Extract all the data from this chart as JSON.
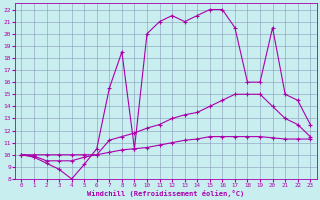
{
  "xlabel": "Windchill (Refroidissement éolien,°C)",
  "bg_color": "#c8eef0",
  "grid_color": "#8899bb",
  "line_color": "#aa00aa",
  "xlim": [
    -0.5,
    23.5
  ],
  "ylim": [
    8,
    22.5
  ],
  "xticks": [
    0,
    1,
    2,
    3,
    4,
    5,
    6,
    7,
    8,
    9,
    10,
    11,
    12,
    13,
    14,
    15,
    16,
    17,
    18,
    19,
    20,
    21,
    22,
    23
  ],
  "yticks": [
    8,
    9,
    10,
    11,
    12,
    13,
    14,
    15,
    16,
    17,
    18,
    19,
    20,
    21,
    22
  ],
  "line1_x": [
    0,
    1,
    2,
    3,
    4,
    5,
    6,
    7,
    8,
    9,
    10,
    11,
    12,
    13,
    14,
    15,
    16,
    17,
    18,
    19,
    20,
    21,
    22,
    23
  ],
  "line1_y": [
    10,
    10,
    10,
    10,
    10,
    10,
    10,
    10.2,
    10.4,
    10.5,
    10.6,
    10.8,
    11.0,
    11.2,
    11.3,
    11.5,
    11.5,
    11.5,
    11.5,
    11.5,
    11.4,
    11.3,
    11.3,
    11.3
  ],
  "line2_x": [
    0,
    1,
    2,
    3,
    4,
    5,
    6,
    7,
    8,
    9,
    10,
    11,
    12,
    13,
    14,
    15,
    16,
    17,
    18,
    19,
    20,
    21,
    22,
    23
  ],
  "line2_y": [
    10,
    9.9,
    9.5,
    9.5,
    9.5,
    9.8,
    10.0,
    11.2,
    11.5,
    11.8,
    12.2,
    12.5,
    13.0,
    13.3,
    13.5,
    14.0,
    14.5,
    15.0,
    15.0,
    15.0,
    14.0,
    13.0,
    12.5,
    11.5
  ],
  "line3_x": [
    0,
    1,
    2,
    3,
    4,
    5,
    6,
    7,
    8,
    9,
    10,
    11,
    12,
    13,
    14,
    15,
    16,
    17,
    18,
    19,
    20,
    21,
    22,
    23
  ],
  "line3_y": [
    10,
    9.8,
    9.3,
    8.8,
    8.0,
    9.2,
    10.5,
    15.5,
    18.5,
    10.5,
    20.0,
    21.0,
    21.5,
    21.0,
    21.5,
    22.0,
    22.0,
    20.5,
    16.0,
    16.0,
    20.5,
    15.0,
    14.5,
    12.5
  ]
}
